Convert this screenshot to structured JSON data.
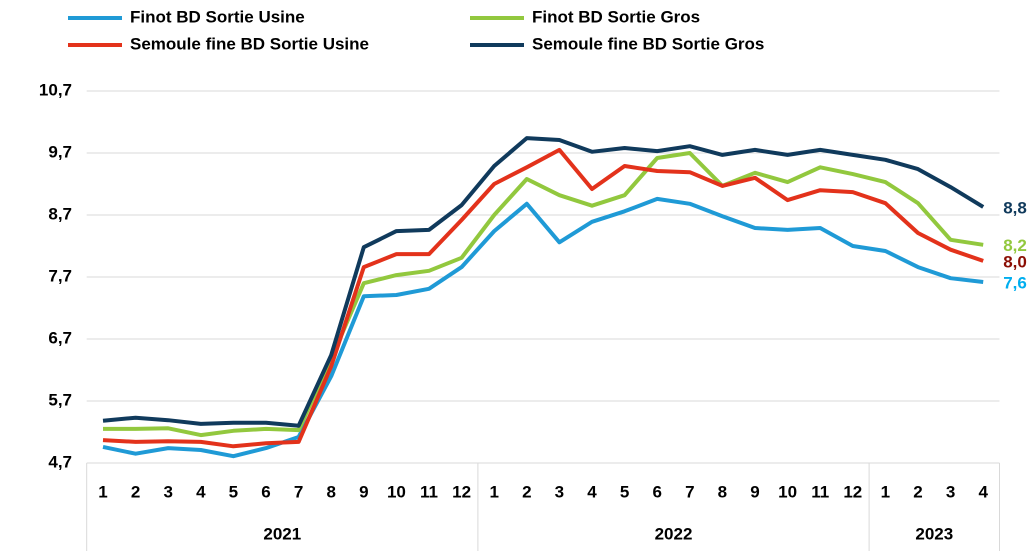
{
  "chart_data": {
    "type": "line",
    "categories": [
      "1",
      "2",
      "3",
      "4",
      "5",
      "6",
      "7",
      "8",
      "9",
      "10",
      "11",
      "12",
      "1",
      "2",
      "3",
      "4",
      "5",
      "6",
      "7",
      "8",
      "9",
      "10",
      "11",
      "12",
      "1",
      "2",
      "3",
      "4"
    ],
    "groups": [
      "2021",
      "2022",
      "2023"
    ],
    "ylim": [
      4.7,
      10.7
    ],
    "yticks": [
      {
        "value": 4.7,
        "label": "4,7"
      },
      {
        "value": 5.7,
        "label": "5,7"
      },
      {
        "value": 6.7,
        "label": "6,7"
      },
      {
        "value": 7.7,
        "label": "7,7"
      },
      {
        "value": 8.7,
        "label": "8,7"
      },
      {
        "value": 9.7,
        "label": "9,7"
      },
      {
        "value": 10.7,
        "label": "10,7"
      }
    ],
    "grid": true,
    "legend": "top",
    "series": [
      {
        "name": "Finot BD Sortie Usine",
        "color": "#1f9ad6",
        "label_color": "#00aeef",
        "values": [
          4.96,
          4.85,
          4.94,
          4.91,
          4.81,
          4.94,
          5.12,
          6.1,
          7.39,
          7.41,
          7.51,
          7.86,
          8.44,
          8.88,
          8.26,
          8.59,
          8.76,
          8.96,
          8.88,
          8.68,
          8.49,
          8.46,
          8.49,
          8.2,
          8.12,
          7.86,
          7.68,
          7.62
        ],
        "value_labels": [
          null,
          null,
          null,
          null,
          null,
          null,
          null,
          null,
          null,
          null,
          null,
          null,
          null,
          null,
          null,
          null,
          null,
          null,
          null,
          null,
          null,
          null,
          null,
          null,
          null,
          null,
          null,
          "7,6"
        ]
      },
      {
        "name": "Finot BD Sortie Gros",
        "color": "#92c83e",
        "label_color": "#92c83e",
        "values": [
          5.25,
          5.25,
          5.26,
          5.15,
          5.22,
          5.25,
          5.23,
          6.38,
          7.6,
          7.73,
          7.8,
          8.01,
          8.7,
          9.28,
          9.02,
          8.85,
          9.02,
          9.62,
          9.7,
          9.17,
          9.38,
          9.23,
          9.47,
          9.36,
          9.23,
          8.89,
          8.3,
          8.22
        ],
        "value_labels": [
          null,
          null,
          null,
          null,
          null,
          null,
          null,
          null,
          null,
          null,
          null,
          null,
          null,
          null,
          null,
          null,
          null,
          null,
          null,
          null,
          null,
          null,
          null,
          null,
          null,
          null,
          null,
          "8,2"
        ]
      },
      {
        "name": "Semoule fine BD Sortie Usine",
        "color": "#e3321b",
        "label_color": "#8b0e04",
        "values": [
          5.07,
          5.04,
          5.05,
          5.04,
          4.97,
          5.02,
          5.04,
          6.26,
          7.86,
          8.07,
          8.07,
          8.62,
          9.2,
          9.47,
          9.75,
          9.12,
          9.49,
          9.41,
          9.39,
          9.17,
          9.3,
          8.94,
          9.1,
          9.07,
          8.89,
          8.41,
          8.14,
          7.96
        ],
        "value_labels": [
          null,
          null,
          null,
          null,
          null,
          null,
          null,
          null,
          null,
          null,
          null,
          null,
          null,
          null,
          null,
          null,
          null,
          null,
          null,
          null,
          null,
          null,
          null,
          null,
          null,
          null,
          null,
          "8,0"
        ]
      },
      {
        "name": "Semoule fine BD Sortie Gros",
        "color": "#103a5c",
        "label_color": "#103a5c",
        "values": [
          5.38,
          5.43,
          5.39,
          5.33,
          5.35,
          5.35,
          5.3,
          6.44,
          8.18,
          8.44,
          8.46,
          8.86,
          9.49,
          9.94,
          9.91,
          9.72,
          9.78,
          9.73,
          9.81,
          9.67,
          9.75,
          9.67,
          9.75,
          9.67,
          9.59,
          9.44,
          9.15,
          8.83
        ],
        "value_labels": [
          null,
          null,
          null,
          null,
          null,
          null,
          null,
          null,
          null,
          null,
          null,
          null,
          null,
          null,
          null,
          null,
          null,
          null,
          null,
          null,
          null,
          null,
          null,
          null,
          null,
          null,
          null,
          "8,8"
        ]
      }
    ]
  }
}
